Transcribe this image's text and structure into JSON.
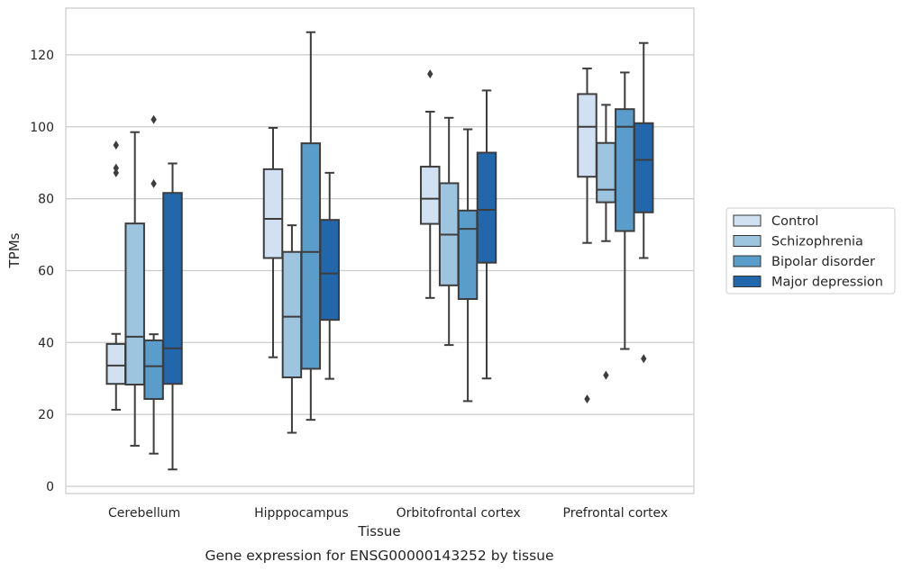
{
  "caption": "Gene expression for ENSG00000143252 by tissue",
  "chart_data": {
    "type": "box",
    "xlabel": "Tissue",
    "ylabel": "TPMs",
    "ylim": [
      -2,
      133
    ],
    "yticks": [
      0,
      20,
      40,
      60,
      80,
      100,
      120
    ],
    "grid": true,
    "legend_position": "right",
    "categories": [
      "Cerebellum",
      "Hipppocampus",
      "Orbitofrontal cortex",
      "Prefrontal cortex"
    ],
    "series": [
      {
        "name": "Control",
        "color": "#d1e1f1",
        "boxes": [
          {
            "whislo": 21.3,
            "q1": 28.5,
            "med": 33.6,
            "q3": 39.6,
            "whishi": 42.4,
            "fliers": [
              87.2,
              88.5,
              94.9
            ]
          },
          {
            "whislo": 35.9,
            "q1": 63.5,
            "med": 74.4,
            "q3": 88.2,
            "whishi": 99.7,
            "fliers": []
          },
          {
            "whislo": 52.4,
            "q1": 73.0,
            "med": 80.0,
            "q3": 88.9,
            "whishi": 104.2,
            "fliers": [
              114.7
            ]
          },
          {
            "whislo": 67.7,
            "q1": 86.1,
            "med": 100.0,
            "q3": 109.1,
            "whishi": 116.2,
            "fliers": [
              24.3
            ]
          }
        ]
      },
      {
        "name": "Schizophrenia",
        "color": "#9dc5e0",
        "boxes": [
          {
            "whislo": 11.3,
            "q1": 28.3,
            "med": 41.6,
            "q3": 73.1,
            "whishi": 98.5,
            "fliers": []
          },
          {
            "whislo": 14.9,
            "q1": 30.3,
            "med": 47.2,
            "q3": 65.2,
            "whishi": 72.6,
            "fliers": []
          },
          {
            "whislo": 39.3,
            "q1": 55.9,
            "med": 70.0,
            "q3": 84.3,
            "whishi": 102.5,
            "fliers": []
          },
          {
            "whislo": 68.2,
            "q1": 79.0,
            "med": 82.5,
            "q3": 95.5,
            "whishi": 106.1,
            "fliers": [
              30.9
            ]
          }
        ]
      },
      {
        "name": "Bipolar disorder",
        "color": "#5a9dca",
        "boxes": [
          {
            "whislo": 9.1,
            "q1": 24.3,
            "med": 33.4,
            "q3": 40.6,
            "whishi": 42.3,
            "fliers": [
              84.2,
              102.0
            ]
          },
          {
            "whislo": 18.5,
            "q1": 32.7,
            "med": 65.2,
            "q3": 95.4,
            "whishi": 126.3,
            "fliers": []
          },
          {
            "whislo": 23.7,
            "q1": 52.1,
            "med": 71.6,
            "q3": 76.7,
            "whishi": 99.3,
            "fliers": []
          },
          {
            "whislo": 38.2,
            "q1": 71.0,
            "med": 100.0,
            "q3": 104.9,
            "whishi": 115.1,
            "fliers": []
          }
        ]
      },
      {
        "name": "Major depression",
        "color": "#2266ac",
        "boxes": [
          {
            "whislo": 4.7,
            "q1": 28.5,
            "med": 38.4,
            "q3": 81.6,
            "whishi": 89.8,
            "fliers": []
          },
          {
            "whislo": 29.9,
            "q1": 46.3,
            "med": 59.2,
            "q3": 74.1,
            "whishi": 87.2,
            "fliers": []
          },
          {
            "whislo": 30.0,
            "q1": 62.2,
            "med": 76.9,
            "q3": 92.8,
            "whishi": 110.1,
            "fliers": []
          },
          {
            "whislo": 63.5,
            "q1": 76.2,
            "med": 90.8,
            "q3": 101.0,
            "whishi": 123.3,
            "fliers": [
              35.5
            ]
          }
        ]
      }
    ]
  }
}
